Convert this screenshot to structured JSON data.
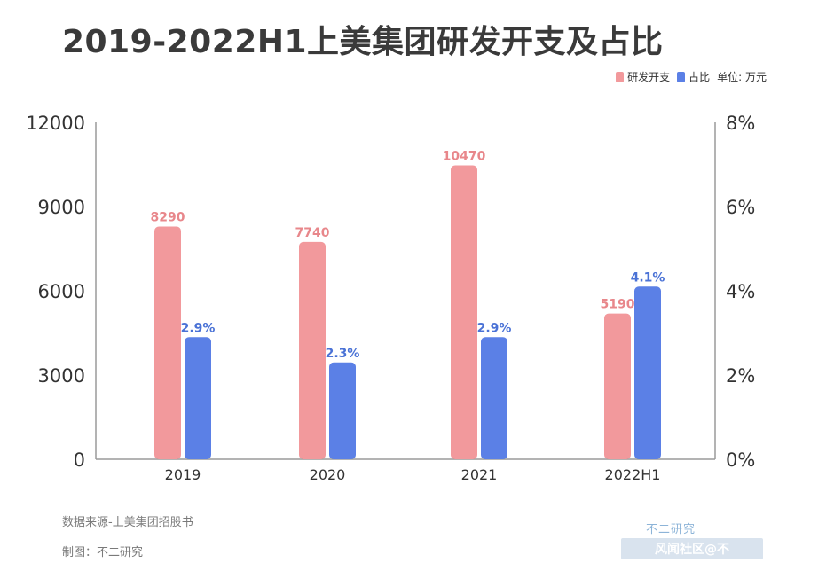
{
  "title": "2019-2022H1上美集团研发开支及占比",
  "legend": {
    "series1": "研发开支",
    "series2": "占比",
    "unit": "单位: 万元"
  },
  "footer": {
    "source": "数据来源-上美集团招股书",
    "maker": "制图：不二研究",
    "brand": "不二研究",
    "watermark": "风闻社区@不"
  },
  "colors": {
    "spend": "#f2999c",
    "ratio": "#5b80e6",
    "spend_label": "#e8878b",
    "ratio_label": "#4a72d6"
  },
  "chart_data": {
    "type": "bar",
    "title": "2019-2022H1上美集团研发开支及占比",
    "categories": [
      "2019",
      "2020",
      "2021",
      "2022H1"
    ],
    "series": [
      {
        "name": "研发开支",
        "axis": "left",
        "values": [
          8290,
          7740,
          10470,
          5190
        ],
        "labels": [
          "8290",
          "7740",
          "10470",
          "5190"
        ]
      },
      {
        "name": "占比",
        "axis": "right",
        "values": [
          2.9,
          2.3,
          2.9,
          4.1
        ],
        "labels": [
          "2.9%",
          "2.3%",
          "2.9%",
          "4.1%"
        ]
      }
    ],
    "y_left": {
      "ylim": [
        0,
        12000
      ],
      "ticks": [
        "0",
        "3000",
        "6000",
        "9000",
        "12000"
      ]
    },
    "y_right": {
      "ylim": [
        0,
        8
      ],
      "ticks": [
        "0%",
        "2%",
        "4%",
        "6%",
        "8%"
      ]
    },
    "unit": "万元",
    "legend_position": "top-right",
    "grid": false
  }
}
